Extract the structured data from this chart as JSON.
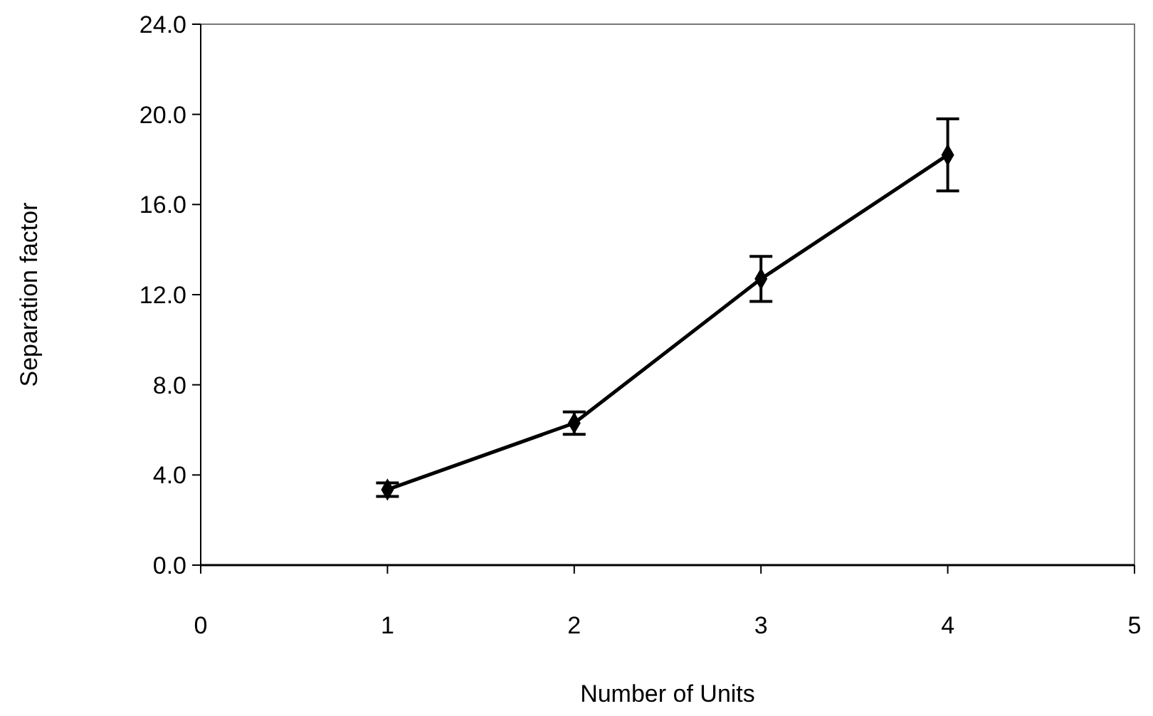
{
  "chart_data": {
    "type": "line",
    "xlabel": "Number of Units",
    "ylabel": "Separation factor",
    "x": [
      1,
      2,
      3,
      4
    ],
    "series": [
      {
        "color": "#000000",
        "values": [
          3.35,
          6.3,
          12.7,
          18.2
        ],
        "errors": [
          0.3,
          0.5,
          1.0,
          1.6
        ]
      }
    ],
    "xlim": [
      0,
      5
    ],
    "xticks": [
      0,
      1,
      2,
      3,
      4,
      5
    ],
    "ylim": [
      0,
      24
    ],
    "yticks": [
      {
        "value": 0,
        "label": "0.0"
      },
      {
        "value": 4,
        "label": "4.0"
      },
      {
        "value": 8,
        "label": "8.0"
      },
      {
        "value": 12,
        "label": "12.0"
      },
      {
        "value": 16,
        "label": "16.0"
      },
      {
        "value": 20,
        "label": "20.0"
      },
      {
        "value": 24,
        "label": "24.0"
      }
    ],
    "marker": "diamond",
    "line_style": "solid",
    "grid": false
  }
}
